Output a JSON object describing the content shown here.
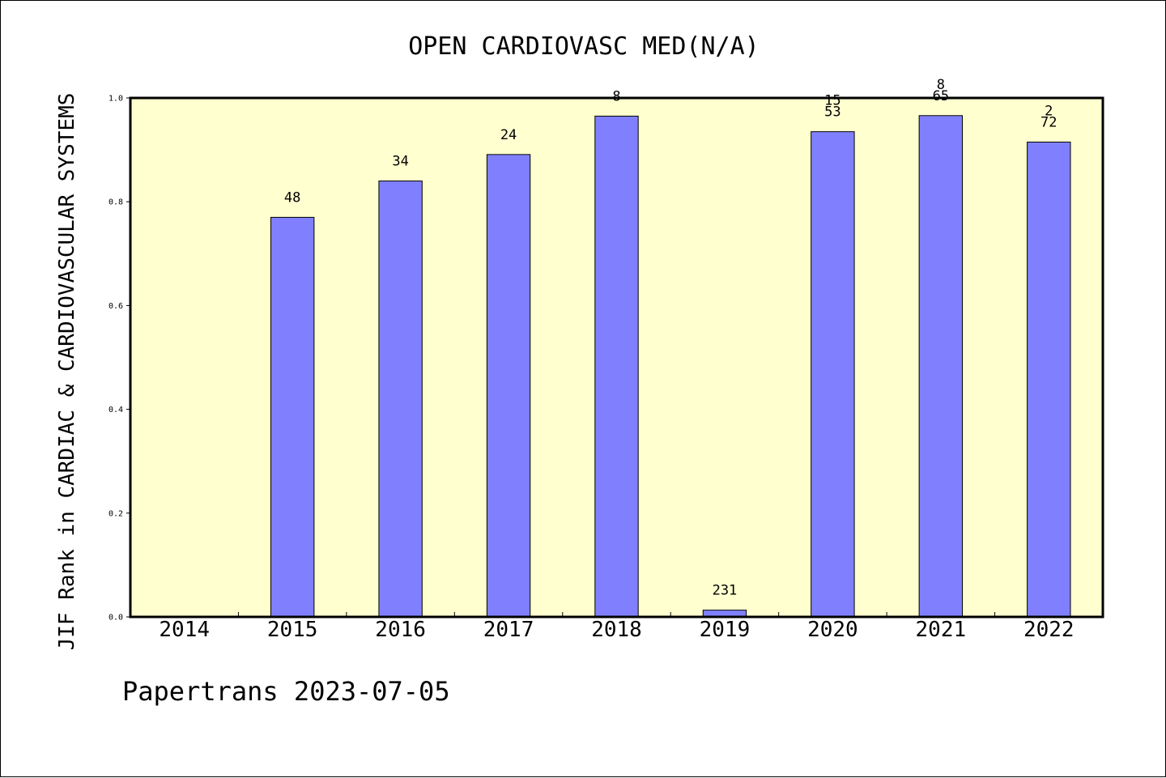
{
  "chart_data": {
    "type": "bar",
    "title": "OPEN CARDIOVASC MED(N/A)",
    "xlabel": "",
    "ylabel": "JIF Rank in CARDIAC & CARDIOVASCULAR SYSTEMS",
    "ylim": [
      0,
      1.0
    ],
    "yticks": [
      "0.0",
      "0.2",
      "0.4",
      "0.6",
      "0.8",
      "1.0"
    ],
    "categories": [
      "2014",
      "2015",
      "2016",
      "2017",
      "2018",
      "2019",
      "2020",
      "2021",
      "2022"
    ],
    "values": [
      null,
      0.77,
      0.84,
      0.891,
      0.965,
      0.013,
      0.935,
      0.966,
      0.915
    ],
    "bar_labels": [
      [],
      [
        "48"
      ],
      [
        "34"
      ],
      [
        "24"
      ],
      [
        "8"
      ],
      [
        "231"
      ],
      [
        "15",
        "53"
      ],
      [
        "8",
        "65"
      ],
      [
        "2",
        "72"
      ]
    ],
    "grid": false,
    "legend": "none",
    "colors": {
      "bar_fill": "#8080ff",
      "bar_stroke": "#000000",
      "plot_background": "#ffffd0",
      "page_background": "#ffffff"
    }
  },
  "footer": {
    "text": "Papertrans 2023-07-05"
  }
}
